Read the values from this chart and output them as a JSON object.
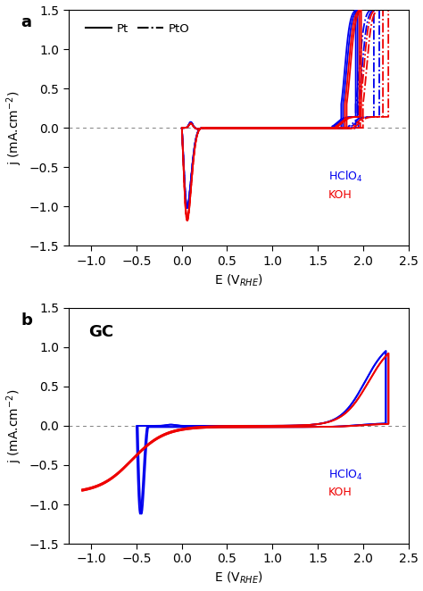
{
  "panel_a": {
    "label": "a",
    "xlim": [
      -1.25,
      2.5
    ],
    "ylim": [
      -1.5,
      1.5
    ],
    "xticks": [
      -1.0,
      -0.5,
      0.0,
      0.5,
      1.0,
      1.5,
      2.0,
      2.5
    ],
    "yticks": [
      -1.5,
      -1.0,
      -0.5,
      0.0,
      0.5,
      1.0,
      1.5
    ],
    "xlabel": "E (V$_{RHE}$)",
    "ylabel": "j (mA.cm$^{-2}$)",
    "blue_color": "#0000EE",
    "red_color": "#EE0000",
    "ann_blue": "HClO$_4$",
    "ann_red": "KOH",
    "ann_x": 1.62,
    "ann_y_blue": -0.62,
    "ann_y_red": -0.85
  },
  "panel_b": {
    "label": "b",
    "xlim": [
      -1.25,
      2.5
    ],
    "ylim": [
      -1.5,
      1.5
    ],
    "xticks": [
      -1.0,
      -0.5,
      0.0,
      0.5,
      1.0,
      1.5,
      2.0,
      2.5
    ],
    "yticks": [
      -1.5,
      -1.0,
      -0.5,
      0.0,
      0.5,
      1.0,
      1.5
    ],
    "xlabel": "E (V$_{RHE}$)",
    "ylabel": "j (mA.cm$^{-2}$)",
    "blue_color": "#0000EE",
    "red_color": "#EE0000",
    "ann_blue": "HClO$_4$",
    "ann_red": "KOH",
    "ann_x": 1.62,
    "ann_y_blue": -0.62,
    "ann_y_red": -0.85
  }
}
